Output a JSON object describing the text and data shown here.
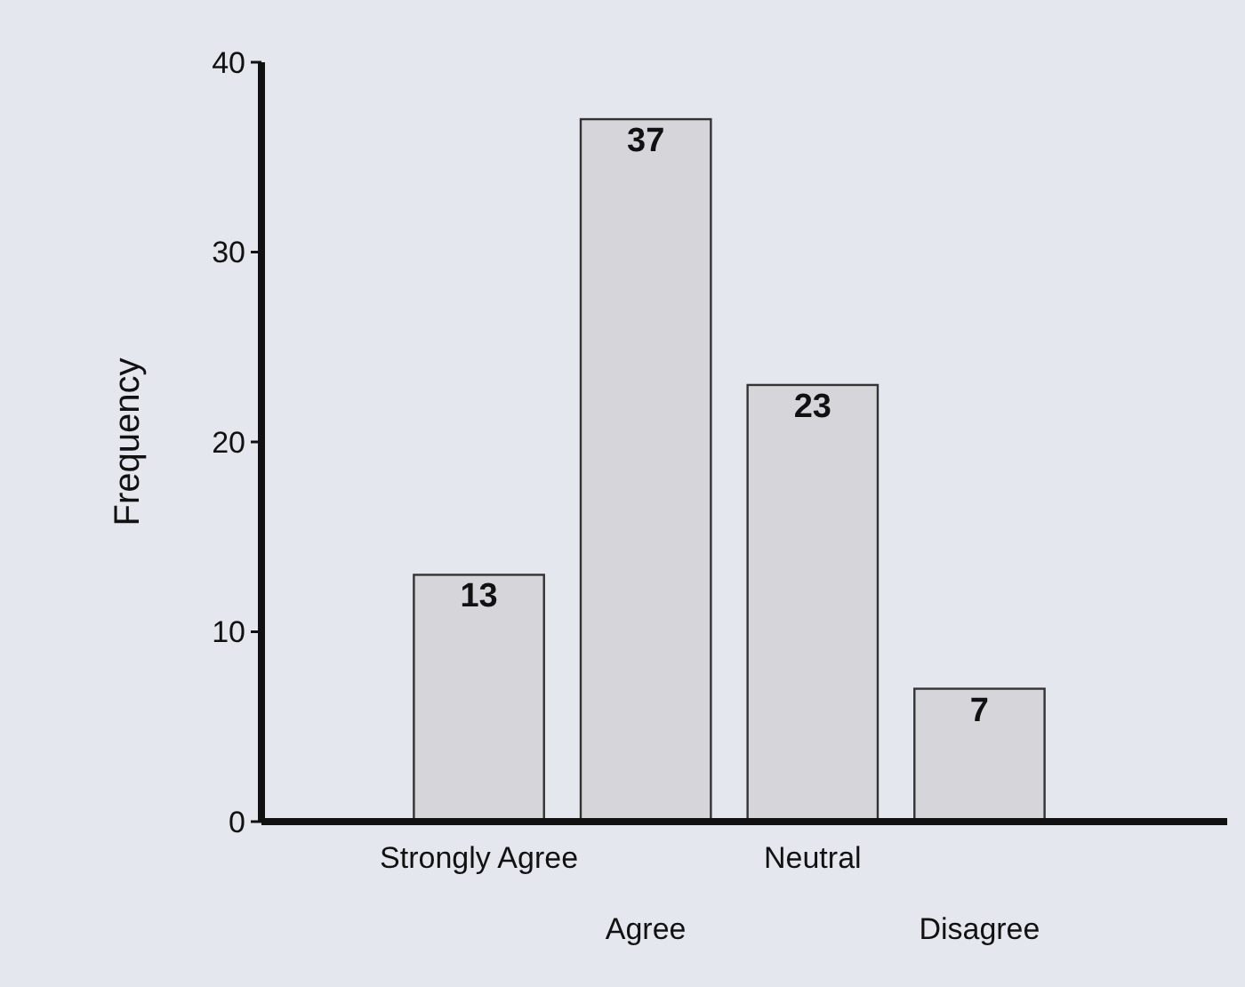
{
  "chart_data": {
    "type": "bar",
    "ylabel": "Frequency",
    "categories": [
      "Strongly Agree",
      "Agree",
      "Neutral",
      "Disagree"
    ],
    "values": [
      13,
      37,
      23,
      7
    ],
    "color": "#d6d6da",
    "ylim": [
      0,
      40
    ],
    "yticks": [
      0,
      10,
      20,
      30,
      40
    ],
    "data_labels": true,
    "grid": false
  }
}
